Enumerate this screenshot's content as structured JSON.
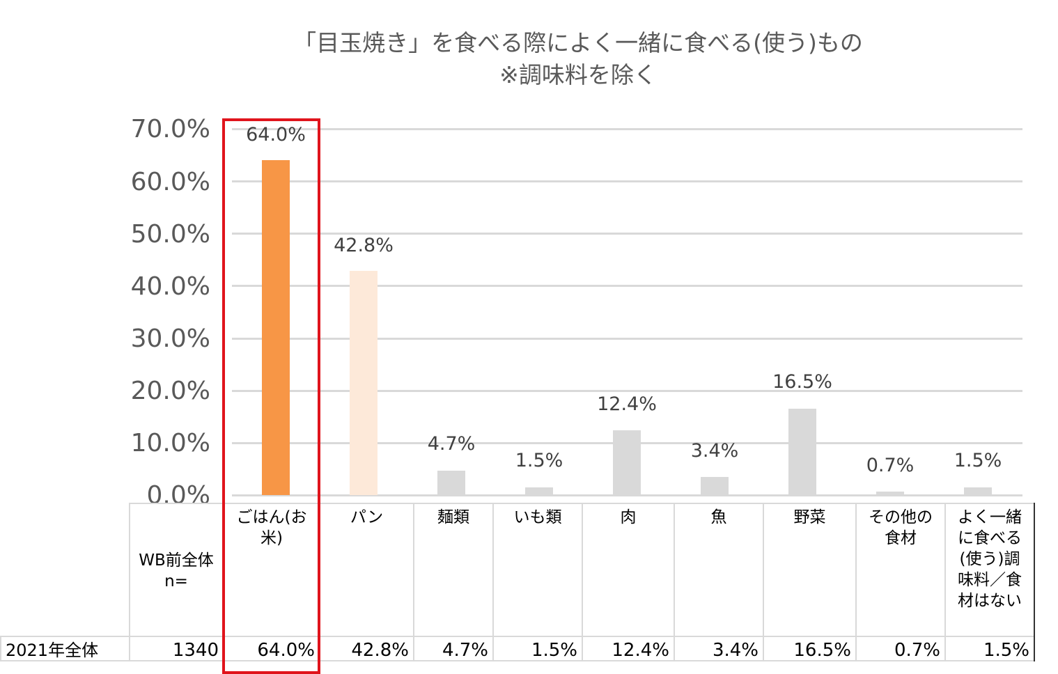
{
  "chart_data": {
    "type": "bar",
    "title": "「目玉焼き」を食べる際によく一緒に食べる(使う)もの",
    "subtitle": "※調味料を除く",
    "categories": [
      "ごはん(お米)",
      "パン",
      "麺類",
      "いも類",
      "肉",
      "魚",
      "野菜",
      "その他の食材",
      "よく一緒に食べる(使う)調味料／食材はない"
    ],
    "series": [
      {
        "name": "2021年全体",
        "values": [
          64.0,
          42.8,
          4.7,
          1.5,
          12.4,
          3.4,
          16.5,
          0.7,
          1.5
        ]
      }
    ],
    "value_labels": [
      "64.0%",
      "42.8%",
      "4.7%",
      "1.5%",
      "12.4%",
      "3.4%",
      "16.5%",
      "0.7%",
      "1.5%"
    ],
    "bar_colors": [
      "#f79646",
      "#fde9d9",
      "#d9d9d9",
      "#d9d9d9",
      "#d9d9d9",
      "#d9d9d9",
      "#d9d9d9",
      "#d9d9d9",
      "#d9d9d9"
    ],
    "xlabel": "",
    "ylabel": "",
    "ylim": [
      0,
      70
    ],
    "yticks": [
      "0.0%",
      "10.0%",
      "20.0%",
      "30.0%",
      "40.0%",
      "50.0%",
      "60.0%",
      "70.0%"
    ],
    "grid": true,
    "legend": "none",
    "highlight": {
      "category": "ごはん(お米)",
      "color": "#e0141c"
    }
  },
  "title": {
    "line1": "「目玉焼き」を食べる際によく一緒に食べる(使う)もの",
    "line2": "※調味料を除く"
  },
  "yaxis": {
    "ticks": [
      "70.0%",
      "60.0%",
      "50.0%",
      "40.0%",
      "30.0%",
      "20.0%",
      "10.0%",
      "0.0%"
    ]
  },
  "labels": [
    "64.0%",
    "42.8%",
    "4.7%",
    "1.5%",
    "12.4%",
    "3.4%",
    "16.5%",
    "0.7%",
    "1.5%"
  ],
  "table": {
    "n_header": [
      "WB前全体",
      "n="
    ],
    "headers": [
      [
        "ごはん(お",
        "米)"
      ],
      [
        "パン"
      ],
      [
        "麺類"
      ],
      [
        "いも類"
      ],
      [
        "肉"
      ],
      [
        "魚"
      ],
      [
        "野菜"
      ],
      [
        "その他の",
        "食材"
      ],
      [
        "よく一緒",
        "に食べる",
        "(使う)調",
        "味料／食",
        "材はない"
      ]
    ],
    "row": {
      "label": "2021年全体",
      "n": "1340",
      "values": [
        "64.0%",
        "42.8%",
        "4.7%",
        "1.5%",
        "12.4%",
        "3.4%",
        "16.5%",
        "0.7%",
        "1.5%"
      ]
    }
  }
}
